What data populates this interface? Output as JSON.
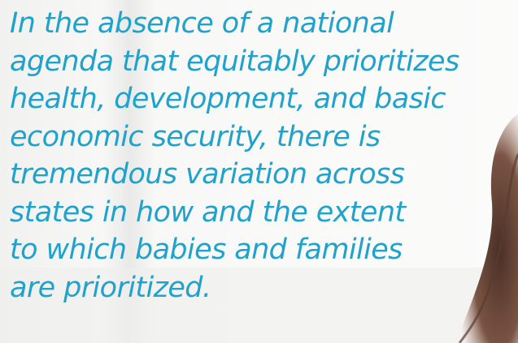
{
  "quote": {
    "lines": [
      "In the absence of a national",
      "agenda that equitably prioritizes",
      "health, development, and basic",
      "economic security, there is",
      "tremendous variation across",
      "states in how and the extent",
      "to which babies and families",
      "are prioritized."
    ]
  }
}
